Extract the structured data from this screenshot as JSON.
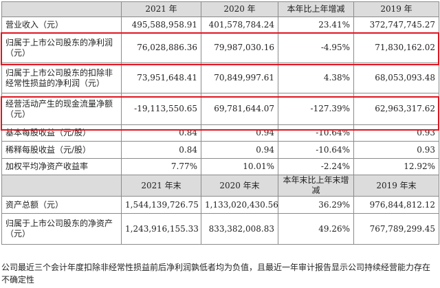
{
  "header1": [
    "2021 年",
    "2020 年",
    "本年比上年增减",
    "2019 年"
  ],
  "rows1": [
    {
      "label": "营业收入（元）",
      "v2021": "495,588,958.91",
      "v2020": "401,578,784.24",
      "change": "23.41%",
      "v2019": "372,747,745.27"
    },
    {
      "label": "归属于上市公司股东的净利润（元）",
      "v2021": "76,028,886.36",
      "v2020": "79,987,030.16",
      "change": "-4.95%",
      "v2019": "71,830,162.02"
    },
    {
      "label": "归属于上市公司股东的扣除非经常性损益的净利润（元）",
      "v2021": "73,951,648.41",
      "v2020": "70,849,997.61",
      "change": "4.38%",
      "v2019": "68,053,093.48"
    },
    {
      "label": "经营活动产生的现金流量净额（元）",
      "v2021": "-19,113,550.65",
      "v2020": "69,781,644.07",
      "change": "-127.39%",
      "v2019": "62,963,317.62"
    },
    {
      "label": "基本每股收益（元/股）",
      "v2021": "0.84",
      "v2020": "0.94",
      "change": "-10.64%",
      "v2019": "0.93"
    },
    {
      "label": "稀释每股收益（元/股）",
      "v2021": "0.84",
      "v2020": "0.94",
      "change": "-10.64%",
      "v2019": "0.93"
    },
    {
      "label": "加权平均净资产收益率",
      "v2021": "7.77%",
      "v2020": "10.01%",
      "change": "-2.24%",
      "v2019": "12.92%"
    }
  ],
  "header2": [
    "2021 年末",
    "2020 年末",
    "本年末比上年末增减",
    "2019 年末"
  ],
  "rows2": [
    {
      "label": "资产总额（元）",
      "v2021": "1,544,139,726.75",
      "v2020": "1,133,020,430.56",
      "change": "36.29%",
      "v2019": "976,844,812.12"
    },
    {
      "label": "归属于上市公司股东的净资产（元）",
      "v2021": "1,243,916,155.33",
      "v2020": "833,382,008.83",
      "change": "49.26%",
      "v2019": "767,789,299.45"
    }
  ],
  "note": "公司最近三个会计年度扣除非经常性损益前后净利润孰低者均为负值，且最近一年审计报告显示公司持续经营能力存在不确定性",
  "highlight_color": "#e0141e",
  "header_bg": "#dcdcdc"
}
